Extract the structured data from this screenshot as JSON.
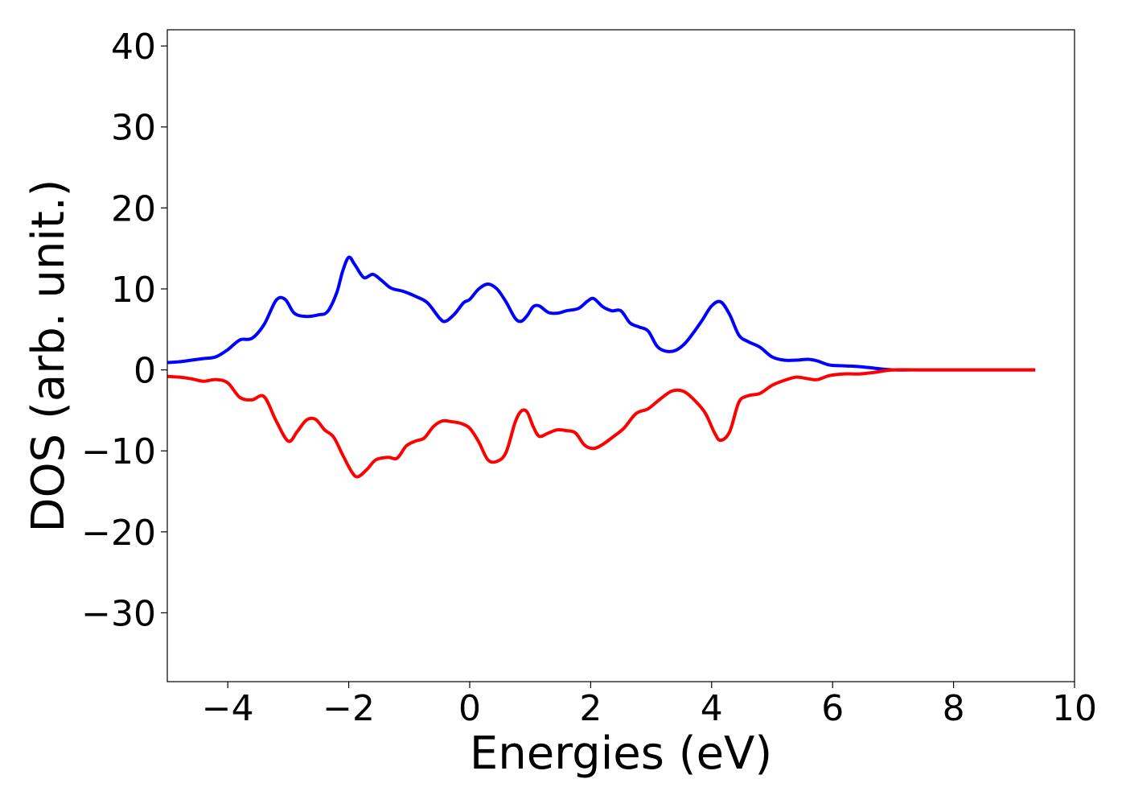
{
  "chart_data": {
    "type": "line",
    "title": "",
    "xlabel": "Energies (eV)",
    "ylabel": "DOS (arb. unit.)",
    "xlim": [
      -5,
      10
    ],
    "ylim": [
      -38.5,
      42
    ],
    "xticks": [
      -4,
      -2,
      0,
      2,
      4,
      6,
      8,
      10
    ],
    "xtick_labels": [
      "−4",
      "−2",
      "0",
      "2",
      "4",
      "6",
      "8",
      "10"
    ],
    "yticks": [
      40,
      30,
      20,
      10,
      0,
      -10,
      -20,
      -30
    ],
    "ytick_labels": [
      "40",
      "30",
      "20",
      "10",
      "0",
      "−10",
      "−20",
      "−30"
    ],
    "grid": false,
    "legend": "none",
    "series": [
      {
        "color": "#0000ff",
        "x": [
          -5.0,
          -4.8,
          -4.6,
          -4.4,
          -4.2,
          -4.0,
          -3.8,
          -3.6,
          -3.4,
          -3.2,
          -3.05,
          -2.9,
          -2.7,
          -2.5,
          -2.35,
          -2.2,
          -2.1,
          -2.0,
          -1.9,
          -1.75,
          -1.6,
          -1.45,
          -1.3,
          -1.1,
          -0.9,
          -0.7,
          -0.5,
          -0.4,
          -0.25,
          -0.1,
          0.0,
          0.15,
          0.3,
          0.45,
          0.6,
          0.75,
          0.85,
          0.95,
          1.05,
          1.15,
          1.3,
          1.45,
          1.6,
          1.8,
          1.95,
          2.05,
          2.2,
          2.35,
          2.5,
          2.65,
          2.8,
          2.95,
          3.1,
          3.25,
          3.4,
          3.55,
          3.7,
          3.85,
          4.0,
          4.15,
          4.3,
          4.45,
          4.6,
          4.8,
          5.0,
          5.2,
          5.4,
          5.6,
          5.75,
          5.95,
          6.2,
          6.45,
          6.7,
          7.0,
          7.5,
          8.0,
          9.0,
          9.35
        ],
        "y": [
          0.9,
          1.0,
          1.2,
          1.4,
          1.6,
          2.5,
          3.7,
          3.9,
          5.6,
          8.6,
          8.7,
          7.0,
          6.6,
          6.8,
          7.2,
          9.5,
          12.2,
          13.9,
          13.0,
          11.4,
          11.8,
          11.0,
          10.1,
          9.7,
          9.1,
          8.3,
          6.4,
          6.0,
          6.9,
          8.3,
          8.7,
          10.0,
          10.6,
          10.0,
          8.4,
          6.4,
          6.0,
          6.7,
          7.8,
          7.9,
          7.1,
          7.0,
          7.3,
          7.6,
          8.5,
          8.8,
          7.8,
          7.3,
          7.3,
          5.8,
          5.3,
          4.8,
          2.9,
          2.3,
          2.4,
          3.2,
          4.6,
          6.2,
          7.9,
          8.4,
          6.8,
          4.3,
          3.5,
          2.8,
          1.6,
          1.2,
          1.2,
          1.3,
          1.1,
          0.6,
          0.5,
          0.4,
          0.2,
          0.0,
          0.0,
          0.0,
          0.0,
          0.0
        ]
      },
      {
        "color": "#ff0000",
        "x": [
          -5.0,
          -4.8,
          -4.6,
          -4.4,
          -4.2,
          -4.0,
          -3.8,
          -3.6,
          -3.4,
          -3.2,
          -3.0,
          -2.85,
          -2.7,
          -2.55,
          -2.4,
          -2.25,
          -2.1,
          -1.95,
          -1.85,
          -1.7,
          -1.55,
          -1.35,
          -1.2,
          -1.05,
          -0.9,
          -0.75,
          -0.6,
          -0.45,
          -0.3,
          -0.15,
          0.0,
          0.15,
          0.3,
          0.45,
          0.6,
          0.75,
          0.85,
          0.95,
          1.05,
          1.15,
          1.3,
          1.45,
          1.6,
          1.75,
          1.9,
          2.05,
          2.2,
          2.4,
          2.55,
          2.75,
          2.95,
          3.15,
          3.35,
          3.55,
          3.75,
          3.9,
          4.05,
          4.15,
          4.3,
          4.45,
          4.6,
          4.8,
          5.0,
          5.2,
          5.4,
          5.6,
          5.75,
          5.95,
          6.2,
          6.45,
          6.7,
          7.0,
          7.5,
          8.0,
          9.0,
          9.35
        ],
        "y": [
          -0.8,
          -0.9,
          -1.1,
          -1.4,
          -1.2,
          -1.6,
          -3.4,
          -3.7,
          -3.3,
          -6.3,
          -8.8,
          -7.6,
          -6.2,
          -6.1,
          -7.4,
          -8.3,
          -10.5,
          -12.6,
          -13.2,
          -12.3,
          -11.1,
          -10.8,
          -10.9,
          -9.4,
          -8.8,
          -8.4,
          -7.0,
          -6.3,
          -6.4,
          -6.6,
          -7.2,
          -8.9,
          -11.1,
          -11.3,
          -10.2,
          -6.5,
          -5.1,
          -5.2,
          -7.0,
          -8.2,
          -7.8,
          -7.4,
          -7.5,
          -7.8,
          -9.3,
          -9.7,
          -9.2,
          -8.1,
          -7.2,
          -5.4,
          -4.8,
          -3.6,
          -2.6,
          -2.7,
          -4.0,
          -5.4,
          -7.8,
          -8.7,
          -7.6,
          -4.0,
          -3.2,
          -2.9,
          -1.9,
          -1.3,
          -0.9,
          -1.1,
          -1.2,
          -0.7,
          -0.5,
          -0.5,
          -0.3,
          0.0,
          0.0,
          0.0,
          0.0,
          0.0
        ]
      }
    ]
  }
}
